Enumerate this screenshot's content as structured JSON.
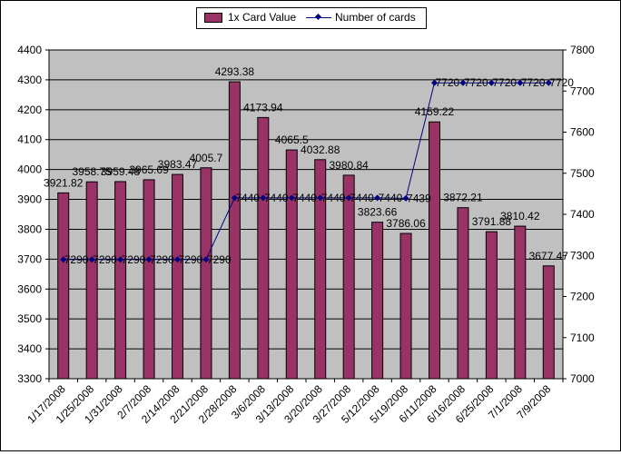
{
  "chart_data": {
    "type": "bar",
    "categories": [
      "1/17/2008",
      "1/25/2008",
      "1/31/2008",
      "2/7/2008",
      "2/14/2008",
      "2/21/2008",
      "2/28/2008",
      "3/6/2008",
      "3/13/2008",
      "3/20/2008",
      "3/27/2008",
      "5/12/2008",
      "5/19/2008",
      "6/11/2008",
      "6/16/2008",
      "6/25/2008",
      "7/1/2008",
      "7/9/2008"
    ],
    "series": [
      {
        "name": "1x Card Value",
        "type": "bar",
        "axis": "left",
        "color": "#993366",
        "values": [
          3921.82,
          3958.75,
          3959.48,
          3965.69,
          3983.47,
          4005.7,
          4293.38,
          4173.94,
          4065.5,
          4032.88,
          3980.84,
          3823.66,
          3786.06,
          4159.22,
          3872.21,
          3791.88,
          3810.42,
          3677.47
        ],
        "labels": [
          "3921.82",
          "3958.75",
          "3959.48",
          "3965.69",
          "3983.47",
          "4005.7",
          "4293.38",
          "4173.94",
          "4065.5",
          "4032.88",
          "3980.84",
          "3823.66",
          "3786.06",
          "4159.22",
          "3872.21",
          "3791.88",
          "3810.42",
          "3677.47"
        ]
      },
      {
        "name": "Number of cards",
        "type": "line",
        "axis": "right",
        "color": "#000080",
        "values": [
          7290,
          7290,
          7290,
          7290,
          7290,
          7290,
          7440,
          7440,
          7440,
          7440,
          7440,
          7440,
          7439,
          7720,
          7720,
          7720,
          7720,
          7720
        ],
        "labels": [
          "7290",
          "7290",
          "7290",
          "7290",
          "7290",
          "7290",
          "7440",
          "7440",
          "7440",
          "7440",
          "7440",
          "7440",
          "7439",
          "7720",
          "7720",
          "7720",
          "7720",
          "7720"
        ]
      }
    ],
    "ylim": [
      3300,
      4400
    ],
    "yticks": [
      "3300",
      "3400",
      "3500",
      "3600",
      "3700",
      "3800",
      "3900",
      "4000",
      "4100",
      "4200",
      "4300",
      "4400"
    ],
    "y2lim": [
      7000,
      7800
    ],
    "y2ticks": [
      "7000",
      "7100",
      "7200",
      "7300",
      "7400",
      "7500",
      "7600",
      "7700",
      "7800"
    ],
    "plot_background": "#c0c0c0",
    "grid": "horizontal",
    "legend": "top-center"
  }
}
